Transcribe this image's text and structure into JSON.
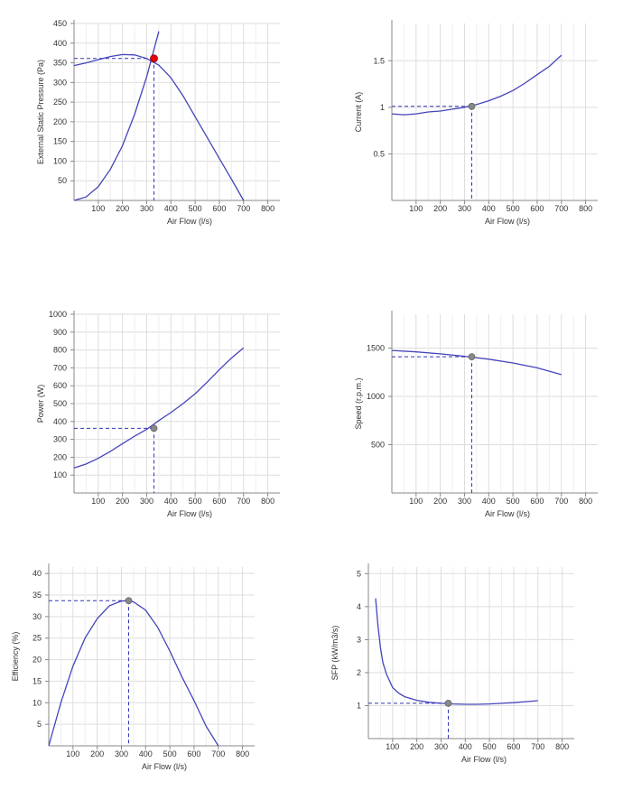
{
  "chart_data": [
    {
      "type": "line",
      "xlabel": "Air Flow (l/s)",
      "ylabel": "External Static Pressure (Pa)",
      "xlim": [
        0,
        850
      ],
      "ylim": [
        0,
        450
      ],
      "x_ticks": [
        100,
        200,
        300,
        400,
        500,
        600,
        700,
        800
      ],
      "x_tick_labels": [
        "100",
        "200",
        "300",
        "400",
        "500",
        "600",
        "700",
        "800"
      ],
      "y_ticks": [
        50,
        100,
        150,
        200,
        250,
        300,
        350,
        400,
        450
      ],
      "y_tick_labels": [
        "50",
        "100",
        "150",
        "200",
        "250",
        "300",
        "350",
        "400",
        "450"
      ],
      "grid": true,
      "series": [
        {
          "x": [
            0,
            50,
            100,
            150,
            200,
            250,
            300,
            350,
            400,
            450,
            500,
            550,
            600,
            650,
            700
          ],
          "values": [
            343,
            350,
            358,
            366,
            371,
            370,
            361,
            344,
            312,
            266,
            213,
            160,
            107,
            54,
            0
          ]
        },
        {
          "x": [
            0,
            50,
            100,
            150,
            200,
            250,
            300,
            350
          ],
          "values": [
            0,
            9,
            35,
            79,
            139,
            219,
            315,
            430
          ]
        }
      ],
      "operating_point": {
        "x": 330,
        "y": 361
      },
      "point_color": "#e8000b",
      "line_color": "#4444bb"
    },
    {
      "type": "line",
      "xlabel": "Air Flow (l/s)",
      "ylabel": "Current (A)",
      "xlim": [
        0,
        850
      ],
      "ylim": [
        0,
        1.9
      ],
      "x_ticks": [
        100,
        200,
        300,
        400,
        500,
        600,
        700,
        800
      ],
      "x_tick_labels": [
        "100",
        "200",
        "300",
        "400",
        "500",
        "600",
        "700",
        "800"
      ],
      "y_ticks": [
        0.5,
        1,
        1.5
      ],
      "y_tick_labels": [
        "0.5",
        "1",
        "1.5"
      ],
      "grid": true,
      "series": [
        {
          "x": [
            0,
            50,
            100,
            150,
            200,
            250,
            300,
            350,
            400,
            450,
            500,
            550,
            600,
            650,
            700
          ],
          "values": [
            0.93,
            0.92,
            0.93,
            0.95,
            0.96,
            0.98,
            1.0,
            1.03,
            1.07,
            1.12,
            1.18,
            1.26,
            1.35,
            1.44,
            1.56
          ]
        }
      ],
      "operating_point": {
        "x": 330,
        "y": 1.01
      },
      "point_color": "#888888",
      "line_color": "#4444bb"
    },
    {
      "type": "line",
      "xlabel": "Air Flow (l/s)",
      "ylabel": "Power (W)",
      "xlim": [
        0,
        850
      ],
      "ylim": [
        0,
        1000
      ],
      "x_ticks": [
        100,
        200,
        300,
        400,
        500,
        600,
        700,
        800
      ],
      "x_tick_labels": [
        "100",
        "200",
        "300",
        "400",
        "500",
        "600",
        "700",
        "800"
      ],
      "y_ticks": [
        100,
        200,
        300,
        400,
        500,
        600,
        700,
        800,
        900,
        1000
      ],
      "y_tick_labels": [
        "100",
        "200",
        "300",
        "400",
        "500",
        "600",
        "700",
        "800",
        "900",
        "1000"
      ],
      "grid": true,
      "series": [
        {
          "x": [
            0,
            50,
            100,
            150,
            200,
            250,
            300,
            350,
            400,
            450,
            500,
            550,
            600,
            650,
            700
          ],
          "values": [
            140,
            162,
            194,
            233,
            276,
            318,
            356,
            405,
            450,
            500,
            555,
            620,
            690,
            755,
            812
          ]
        }
      ],
      "operating_point": {
        "x": 330,
        "y": 362
      },
      "point_color": "#888888",
      "line_color": "#4444bb"
    },
    {
      "type": "line",
      "xlabel": "Air Flow (l/s)",
      "ylabel": "Speed (r.p.m.)",
      "xlim": [
        0,
        850
      ],
      "ylim": [
        0,
        1850
      ],
      "x_ticks": [
        100,
        200,
        300,
        400,
        500,
        600,
        700,
        800
      ],
      "x_tick_labels": [
        "100",
        "200",
        "300",
        "400",
        "500",
        "600",
        "700",
        "800"
      ],
      "y_ticks": [
        500,
        1000,
        1500
      ],
      "y_tick_labels": [
        "500",
        "1000",
        "1500"
      ],
      "grid": true,
      "series": [
        {
          "x": [
            0,
            100,
            200,
            300,
            400,
            500,
            600,
            700
          ],
          "values": [
            1475,
            1460,
            1440,
            1415,
            1385,
            1345,
            1295,
            1225
          ]
        }
      ],
      "operating_point": {
        "x": 330,
        "y": 1410
      },
      "point_color": "#888888",
      "line_color": "#4444bb"
    },
    {
      "type": "line",
      "xlabel": "Air Flow (l/s)",
      "ylabel": "Efficiency (%)",
      "xlim": [
        0,
        850
      ],
      "ylim": [
        0,
        41.5
      ],
      "x_ticks": [
        100,
        200,
        300,
        400,
        500,
        600,
        700,
        800
      ],
      "x_tick_labels": [
        "100",
        "200",
        "300",
        "400",
        "500",
        "600",
        "700",
        "800"
      ],
      "y_ticks": [
        5,
        10,
        15,
        20,
        25,
        30,
        35,
        40
      ],
      "y_tick_labels": [
        "5",
        "10",
        "15",
        "20",
        "25",
        "30",
        "35",
        "40"
      ],
      "grid": true,
      "series": [
        {
          "x": [
            0,
            50,
            100,
            150,
            200,
            250,
            300,
            330,
            350,
            400,
            450,
            500,
            550,
            600,
            650,
            700
          ],
          "values": [
            0,
            10,
            18.5,
            25,
            29.5,
            32.5,
            33.6,
            33.7,
            33.4,
            31.5,
            27.5,
            22,
            16,
            10.5,
            4.5,
            0
          ]
        }
      ],
      "operating_point": {
        "x": 330,
        "y": 33.7
      },
      "point_color": "#888888",
      "line_color": "#4444bb"
    },
    {
      "type": "line",
      "xlabel": "Air Flow (l/s)",
      "ylabel": "SFP (kW/m3/s)",
      "xlim": [
        0,
        850
      ],
      "ylim": [
        0,
        5.2
      ],
      "x_ticks": [
        100,
        200,
        300,
        400,
        500,
        600,
        700,
        800
      ],
      "x_tick_labels": [
        "100",
        "200",
        "300",
        "400",
        "500",
        "600",
        "700",
        "800"
      ],
      "y_ticks": [
        1,
        2,
        3,
        4,
        5
      ],
      "y_tick_labels": [
        "1",
        "2",
        "3",
        "4",
        "5"
      ],
      "grid": true,
      "series": [
        {
          "x": [
            30,
            40,
            50,
            60,
            75,
            100,
            125,
            150,
            200,
            250,
            300,
            350,
            400,
            450,
            500,
            550,
            600,
            650,
            700
          ],
          "values": [
            4.25,
            3.4,
            2.75,
            2.3,
            1.95,
            1.55,
            1.38,
            1.27,
            1.16,
            1.1,
            1.07,
            1.05,
            1.04,
            1.04,
            1.05,
            1.07,
            1.09,
            1.12,
            1.15
          ]
        }
      ],
      "operating_point": {
        "x": 330,
        "y": 1.07
      },
      "point_color": "#888888",
      "line_color": "#4444bb"
    }
  ]
}
